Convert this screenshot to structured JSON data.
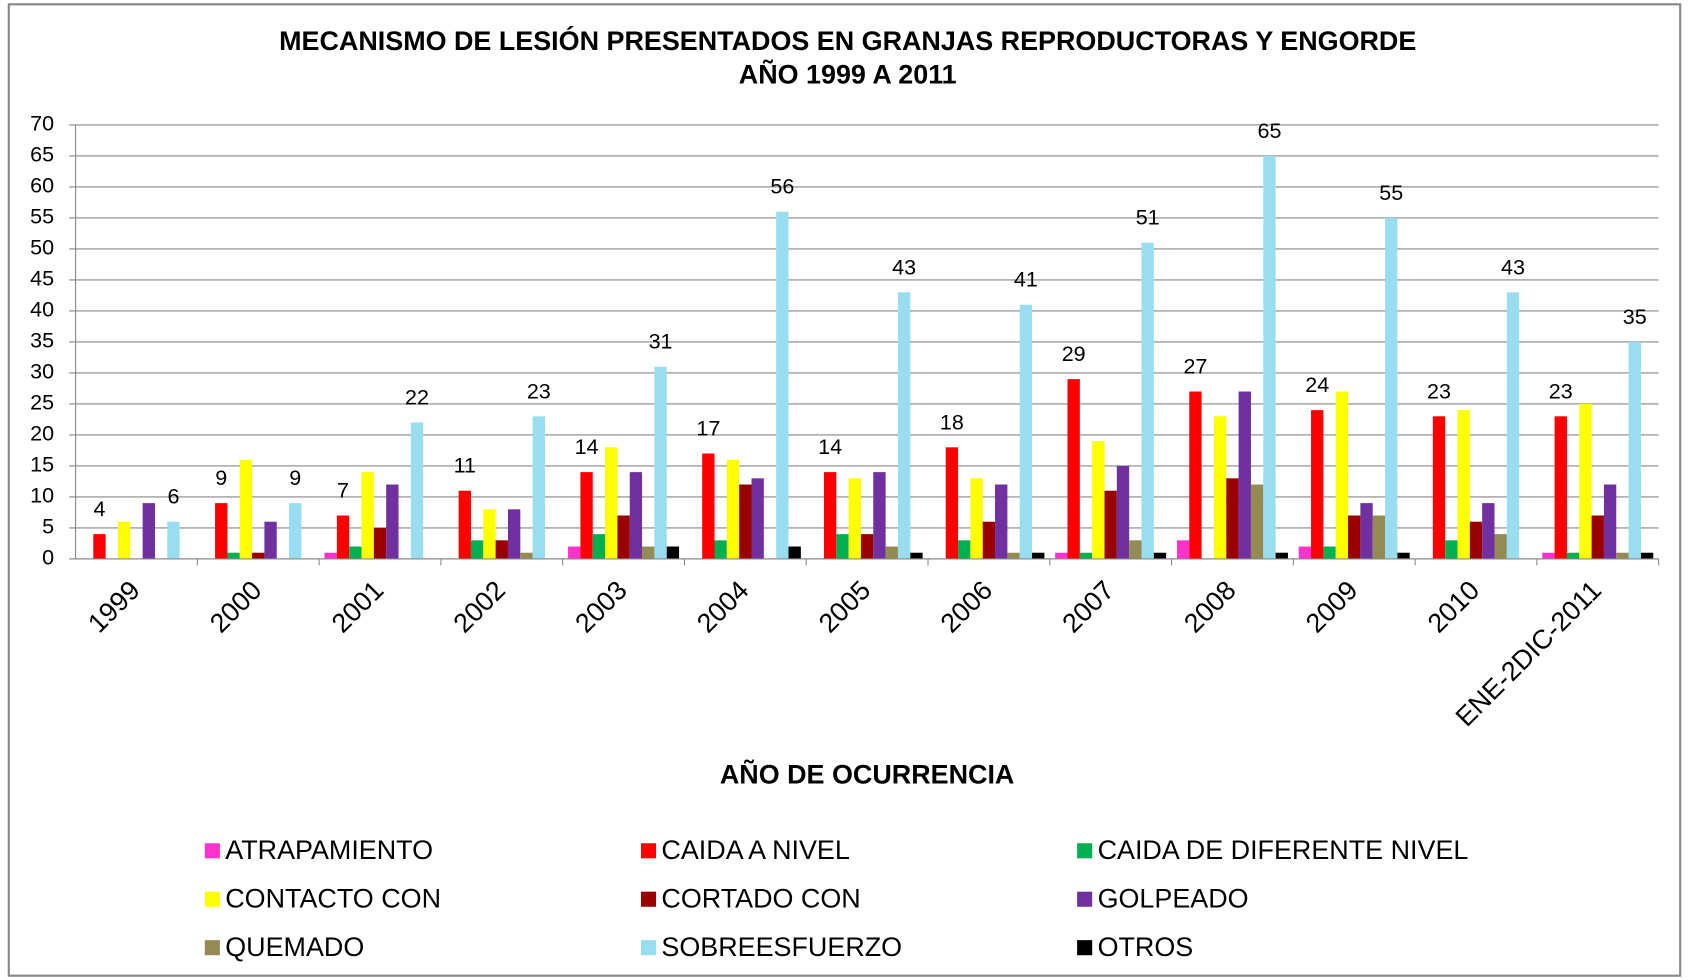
{
  "chart_data": {
    "type": "bar",
    "title": [
      "MECANISMO DE LESIÓN PRESENTADOS EN GRANJAS REPRODUCTORAS Y ENGORDE",
      "AÑO 1999 A 2011"
    ],
    "x_label": "AÑO DE OCURRENCIA",
    "categories": [
      "1999",
      "2000",
      "2001",
      "2002",
      "2003",
      "2004",
      "2005",
      "2006",
      "2007",
      "2008",
      "2009",
      "2010",
      "ENE-2DIC-2011"
    ],
    "series": [
      {
        "name": "ATRAPAMIENTO",
        "color": "#ff33cc",
        "values": [
          0,
          0,
          1,
          0,
          2,
          0,
          0,
          0,
          1,
          3,
          2,
          0,
          1
        ]
      },
      {
        "name": "CAIDA A NIVEL",
        "color": "#ff0000",
        "values": [
          4,
          9,
          7,
          11,
          14,
          17,
          14,
          18,
          29,
          27,
          24,
          23,
          23
        ],
        "data_labels": true
      },
      {
        "name": "CAIDA DE DIFERENTE NIVEL",
        "color": "#00b050",
        "values": [
          0,
          1,
          2,
          3,
          4,
          3,
          4,
          3,
          1,
          0,
          2,
          3,
          1
        ]
      },
      {
        "name": "CONTACTO CON",
        "color": "#ffff00",
        "values": [
          6,
          16,
          14,
          8,
          18,
          16,
          13,
          13,
          19,
          23,
          27,
          24,
          25
        ]
      },
      {
        "name": "CORTADO CON",
        "color": "#990000",
        "values": [
          0,
          1,
          5,
          3,
          7,
          12,
          4,
          6,
          11,
          13,
          7,
          6,
          7
        ]
      },
      {
        "name": "GOLPEADO",
        "color": "#7030a0",
        "values": [
          9,
          6,
          12,
          8,
          14,
          13,
          14,
          12,
          15,
          27,
          9,
          9,
          12
        ]
      },
      {
        "name": "QUEMADO",
        "color": "#948a54",
        "values": [
          0,
          0,
          0,
          1,
          2,
          0,
          2,
          1,
          3,
          12,
          7,
          4,
          1
        ]
      },
      {
        "name": "SOBREESFUERZO",
        "color": "#99ddf0",
        "values": [
          6,
          9,
          22,
          23,
          31,
          56,
          43,
          41,
          51,
          65,
          55,
          43,
          35
        ],
        "data_labels": true
      },
      {
        "name": "OTROS",
        "color": "#000000",
        "values": [
          0,
          0,
          0,
          0,
          2,
          2,
          1,
          1,
          1,
          1,
          1,
          0,
          1
        ]
      }
    ],
    "ylim": [
      0,
      70
    ],
    "yticks": [
      0,
      5,
      10,
      15,
      20,
      25,
      30,
      35,
      40,
      45,
      50,
      55,
      60,
      65,
      70
    ],
    "grid": true
  }
}
